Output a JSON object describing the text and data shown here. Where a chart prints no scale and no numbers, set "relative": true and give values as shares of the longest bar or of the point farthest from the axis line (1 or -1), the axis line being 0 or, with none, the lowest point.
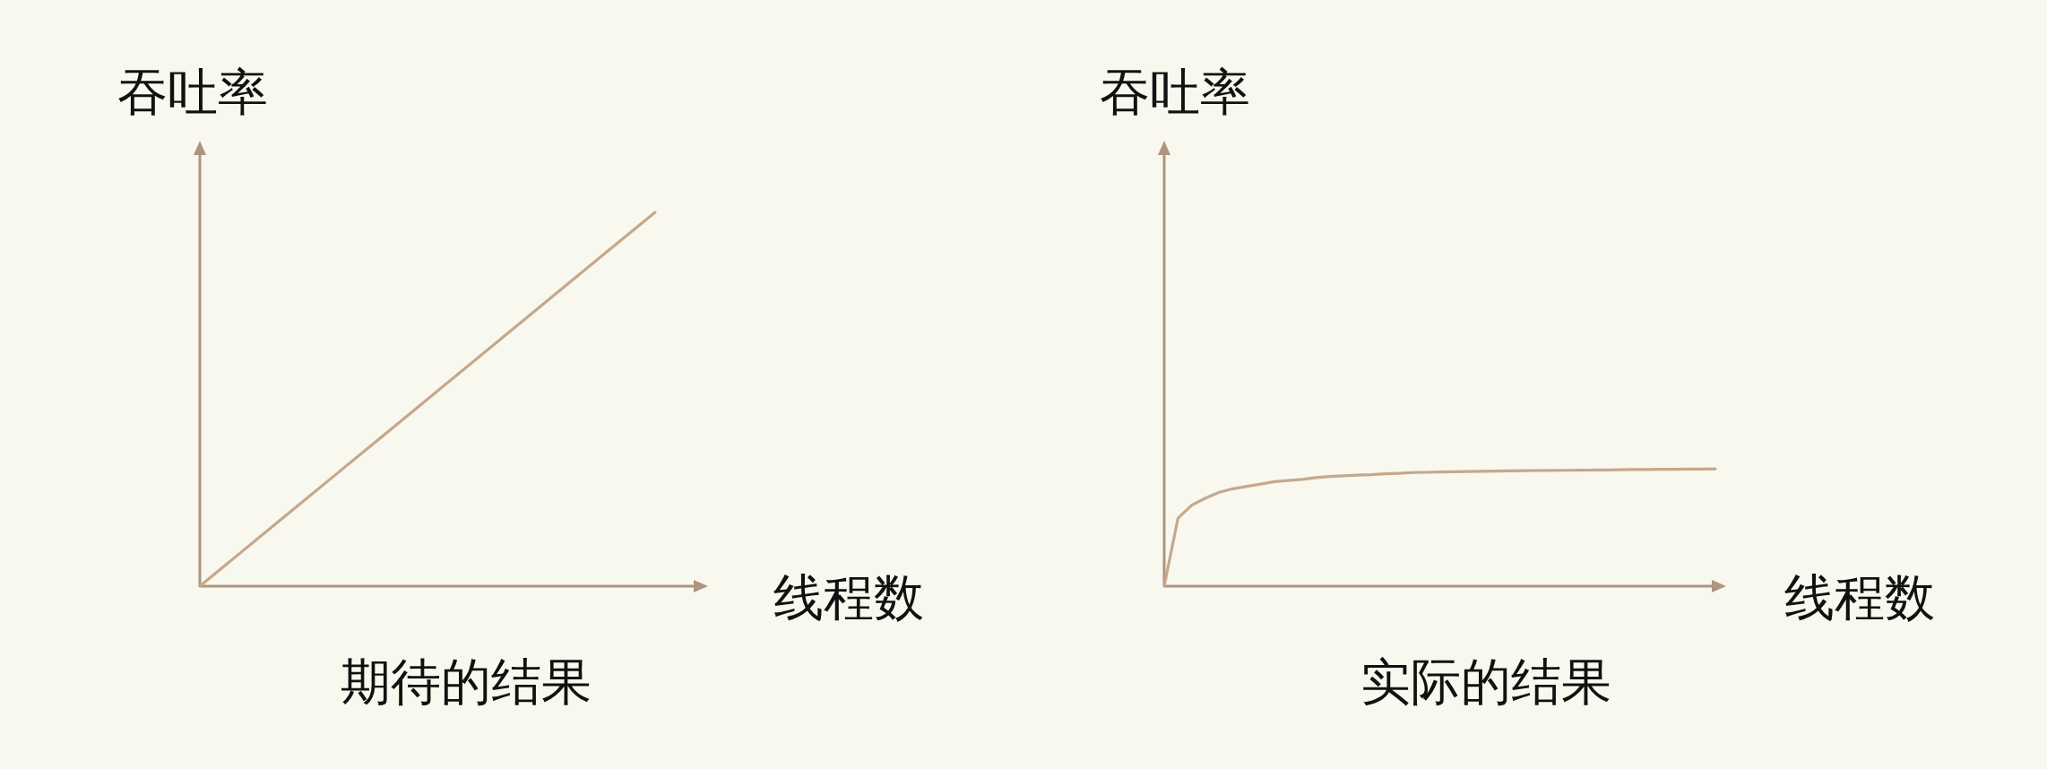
{
  "chart_data": [
    {
      "type": "line",
      "title": "期待的结果",
      "xlabel": "线程数",
      "ylabel": "吞吐率",
      "relative": true,
      "categories": [
        null,
        null,
        null,
        null,
        null,
        null,
        null,
        null,
        null,
        null,
        null
      ],
      "series": [
        {
          "color": "#c4a88e",
          "values": [
            0,
            0.1,
            0.2,
            0.3,
            0.4,
            0.5,
            0.6,
            0.7,
            0.8,
            0.9,
            1
          ]
        }
      ]
    },
    {
      "type": "line",
      "title": "实际的结果",
      "xlabel": "线程数",
      "ylabel": "吞吐率",
      "relative": true,
      "categories": [
        null,
        null,
        null,
        null,
        null,
        null,
        null,
        null,
        null,
        null,
        null,
        null,
        null,
        null,
        null,
        null,
        null,
        null,
        null,
        null,
        null,
        null,
        null,
        null,
        null,
        null,
        null,
        null,
        null,
        null,
        null,
        null,
        null,
        null,
        null,
        null,
        null,
        null,
        null,
        null,
        null
      ],
      "series": [
        {
          "color": "#c4a88e",
          "values": [
            0,
            0.58,
            0.69,
            0.75,
            0.8,
            0.83,
            0.85,
            0.87,
            0.89,
            0.9,
            0.91,
            0.925,
            0.935,
            0.94,
            0.946,
            0.95,
            0.957,
            0.962,
            0.968,
            0.97,
            0.972,
            0.975,
            0.977,
            0.979,
            0.98,
            0.982,
            0.984,
            0.985,
            0.986,
            0.987,
            0.988,
            0.989,
            0.99,
            0.992,
            0.993,
            0.994,
            0.995,
            0.996,
            0.997,
            0.998,
            1
          ]
        }
      ]
    }
  ]
}
